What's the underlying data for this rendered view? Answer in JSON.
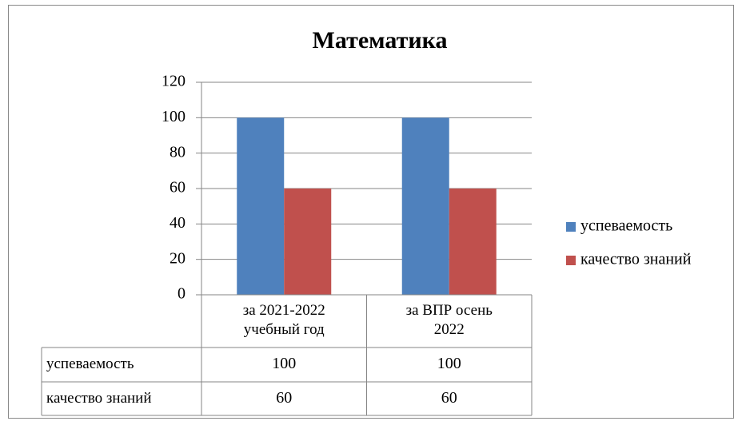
{
  "chart_data": {
    "type": "bar",
    "title": "Математика",
    "categories": [
      "за 2021-2022 учебный год",
      "за ВПР осень 2022"
    ],
    "series": [
      {
        "name": "успеваемость",
        "color": "#4f81bd",
        "values": [
          100,
          100
        ]
      },
      {
        "name": "качество знаний",
        "color": "#c0504d",
        "values": [
          60,
          60
        ]
      }
    ],
    "ylim": [
      0,
      120
    ],
    "yticks": [
      0,
      20,
      40,
      60,
      80,
      100,
      120
    ],
    "grid": true,
    "legend": "right",
    "data_table": true
  }
}
